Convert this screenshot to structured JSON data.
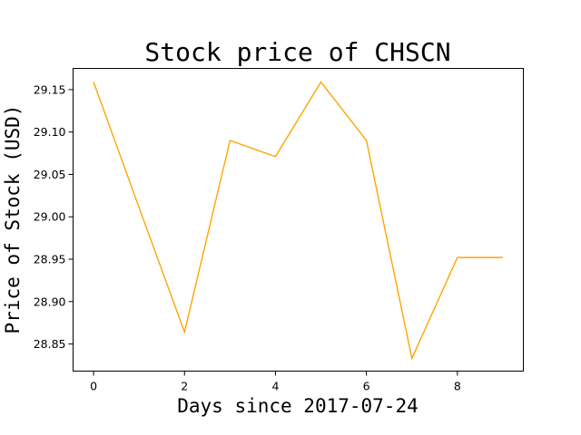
{
  "chart_data": {
    "type": "line",
    "title": "Stock price of CHSCN",
    "xlabel": "Days since 2017-07-24",
    "ylabel": "Price of Stock (USD)",
    "x": [
      0,
      1,
      2,
      3,
      4,
      5,
      6,
      7,
      8,
      9
    ],
    "series": [
      {
        "values": [
          29.159,
          29.011,
          28.864,
          29.09,
          29.071,
          29.159,
          29.09,
          28.833,
          28.952,
          28.952
        ],
        "color": "#ffa500"
      }
    ],
    "xlim": [
      -0.45,
      9.45
    ],
    "ylim": [
      28.818,
      29.175
    ],
    "xticks": [
      0,
      2,
      4,
      6,
      8
    ],
    "xtick_labels": [
      "0",
      "2",
      "4",
      "6",
      "8"
    ],
    "yticks": [
      28.85,
      28.9,
      28.95,
      29.0,
      29.05,
      29.1,
      29.15
    ],
    "ytick_labels": [
      "28.85",
      "28.90",
      "28.95",
      "29.00",
      "29.05",
      "29.10",
      "29.15"
    ],
    "grid": false,
    "legend": "none"
  }
}
